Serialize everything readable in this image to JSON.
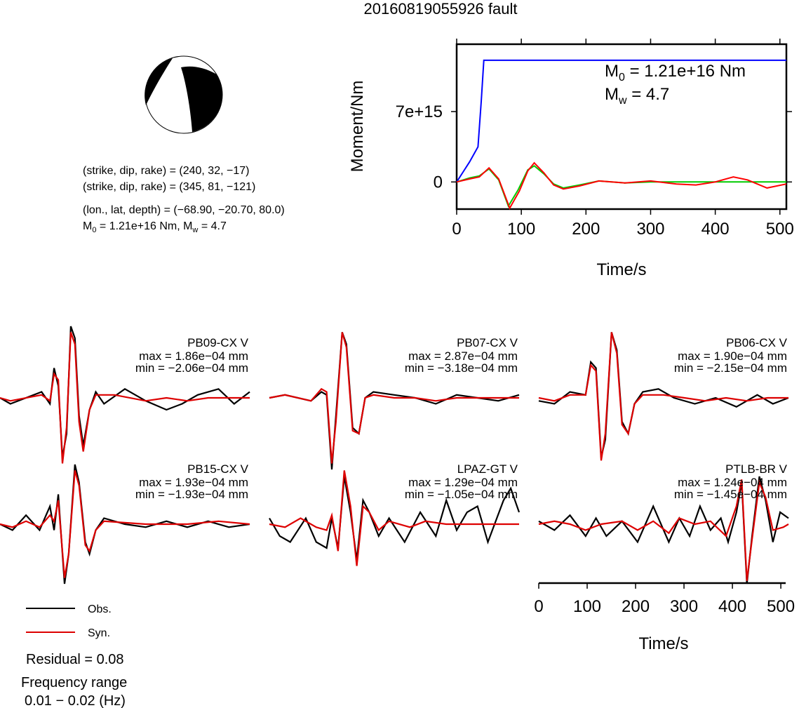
{
  "title": "20160819055926 fault",
  "mechanism": {
    "strike_dip_rake_1": "(strike, dip, rake) = (240, 32, −17)",
    "strike_dip_rake_2": "(strike, dip, rake) = (345, 81, −121)",
    "location": "(lon., lat, depth) = (−68.90, −20.70, 80.0)",
    "m0_label": "M",
    "m0_sub": "0",
    "m0_rest": " = 1.21e+16 Nm, M",
    "mw_sub": "w",
    "mw_rest": " = 4.7"
  },
  "chart_data": [
    {
      "type": "line",
      "ylabel": "Moment/Nm",
      "xlabel": "Time/s",
      "xlim": [
        0,
        510
      ],
      "xticks": [
        "0",
        "100",
        "200",
        "300",
        "400",
        "500"
      ],
      "ylim": [
        -2700000000000000.0,
        1.37e+16
      ],
      "yticks": [
        "0",
        "7e+15"
      ],
      "annotation": {
        "m0_main": "M",
        "m0_sub": "0",
        "m0_rest": " = 1.21e+16 Nm",
        "mw_main": "M",
        "mw_sub": "w",
        "mw_rest": " = 4.7"
      },
      "series": [
        {
          "color": "#0000ff",
          "x": [
            0,
            10,
            20,
            33,
            38,
            42,
            510
          ],
          "y": [
            0,
            1000000000000000.0,
            2000000000000000.0,
            3500000000000000.0,
            8000000000000000.0,
            1.21e+16,
            1.21e+16
          ]
        },
        {
          "color": "#00cc00",
          "x": [
            0,
            20,
            35,
            50,
            65,
            80,
            95,
            110,
            120,
            135,
            150,
            165,
            190,
            220,
            260,
            300,
            340,
            380,
            420,
            460,
            510
          ],
          "y": [
            0,
            400000000000000.0,
            600000000000000.0,
            1300000000000000.0,
            200000000000000.0,
            -2400000000000000.0,
            -800000000000000.0,
            1200000000000000.0,
            1600000000000000.0,
            800000000000000.0,
            -200000000000000.0,
            -600000000000000.0,
            -300000000000000.0,
            100000000000000.0,
            -100000000000000.0,
            0.0,
            0.0,
            0.0,
            0.0,
            0.0,
            0.0
          ]
        },
        {
          "color": "#ff0000",
          "x": [
            0,
            20,
            35,
            50,
            65,
            82,
            97,
            110,
            120,
            135,
            150,
            165,
            190,
            220,
            260,
            300,
            340,
            370,
            400,
            428,
            450,
            480,
            510
          ],
          "y": [
            0,
            300000000000000.0,
            500000000000000.0,
            1400000000000000.0,
            300000000000000.0,
            -2600000000000000.0,
            -900000000000000.0,
            1100000000000000.0,
            1900000000000000.0,
            900000000000000.0,
            -300000000000000.0,
            -700000000000000.0,
            -400000000000000.0,
            100000000000000.0,
            -100000000000000.0,
            100000000000000.0,
            -200000000000000.0,
            -300000000000000.0,
            0.0,
            500000000000000.0,
            200000000000000.0,
            -600000000000000.0,
            -200000000000000.0
          ]
        }
      ]
    }
  ],
  "waveforms": [
    {
      "station": "PB09-CX V",
      "max": "max = 1.86e−04 mm",
      "min": "min = −2.06e−04 mm",
      "obs": [
        [
          0,
          0
        ],
        [
          10,
          -0.1
        ],
        [
          40,
          0.1
        ],
        [
          48,
          -0.1
        ],
        [
          52,
          0.5
        ],
        [
          56,
          0.2
        ],
        [
          60,
          -1
        ],
        [
          64,
          -0.6
        ],
        [
          68,
          1.2
        ],
        [
          72,
          1.0
        ],
        [
          76,
          -0.3
        ],
        [
          80,
          -0.8
        ],
        [
          86,
          -0.2
        ],
        [
          92,
          0.1
        ],
        [
          100,
          -0.1
        ],
        [
          120,
          0.15
        ],
        [
          140,
          -0.05
        ],
        [
          160,
          -0.2
        ],
        [
          175,
          -0.1
        ],
        [
          190,
          0.05
        ],
        [
          210,
          0.15
        ],
        [
          225,
          -0.1
        ],
        [
          240,
          0.1
        ]
      ],
      "syn": [
        [
          0,
          0
        ],
        [
          10,
          -0.05
        ],
        [
          40,
          0.05
        ],
        [
          48,
          -0.05
        ],
        [
          52,
          0.4
        ],
        [
          56,
          0.3
        ],
        [
          60,
          -1.1
        ],
        [
          64,
          -0.5
        ],
        [
          68,
          1.1
        ],
        [
          72,
          0.9
        ],
        [
          76,
          -0.4
        ],
        [
          80,
          -0.9
        ],
        [
          86,
          -0.2
        ],
        [
          92,
          0.05
        ],
        [
          110,
          0.05
        ],
        [
          140,
          -0.05
        ],
        [
          160,
          0.0
        ],
        [
          180,
          -0.05
        ],
        [
          200,
          0.0
        ],
        [
          220,
          0.0
        ],
        [
          240,
          0.0
        ]
      ]
    },
    {
      "station": "PB07-CX V",
      "max": "max = 2.87e−04 mm",
      "min": "min = −3.18e−04 mm",
      "obs": [
        [
          0,
          0
        ],
        [
          15,
          0.05
        ],
        [
          40,
          -0.05
        ],
        [
          50,
          0.1
        ],
        [
          55,
          0.05
        ],
        [
          60,
          -1.2
        ],
        [
          64,
          -0.3
        ],
        [
          70,
          1.1
        ],
        [
          74,
          0.9
        ],
        [
          80,
          -0.5
        ],
        [
          86,
          -0.6
        ],
        [
          92,
          0.0
        ],
        [
          100,
          0.1
        ],
        [
          120,
          0.05
        ],
        [
          140,
          0.0
        ],
        [
          160,
          -0.1
        ],
        [
          180,
          0.05
        ],
        [
          200,
          0.0
        ],
        [
          220,
          -0.05
        ],
        [
          240,
          0.05
        ]
      ],
      "syn": [
        [
          0,
          0
        ],
        [
          15,
          0.05
        ],
        [
          40,
          -0.05
        ],
        [
          50,
          0.15
        ],
        [
          55,
          0.1
        ],
        [
          60,
          -1.1
        ],
        [
          64,
          -0.4
        ],
        [
          70,
          1.1
        ],
        [
          74,
          0.85
        ],
        [
          80,
          -0.55
        ],
        [
          86,
          -0.6
        ],
        [
          92,
          0.0
        ],
        [
          100,
          0.05
        ],
        [
          120,
          0.0
        ],
        [
          140,
          0.0
        ],
        [
          160,
          -0.05
        ],
        [
          180,
          0.0
        ],
        [
          200,
          0.0
        ],
        [
          220,
          0.0
        ],
        [
          240,
          0.0
        ]
      ]
    },
    {
      "station": "PB06-CX V",
      "max": "max = 1.90e−04 mm",
      "min": "min = −2.15e−04 mm",
      "obs": [
        [
          0,
          -0.05
        ],
        [
          15,
          -0.1
        ],
        [
          30,
          0.1
        ],
        [
          45,
          0.05
        ],
        [
          50,
          0.6
        ],
        [
          55,
          0.5
        ],
        [
          60,
          -1.0
        ],
        [
          64,
          -0.7
        ],
        [
          70,
          1.1
        ],
        [
          75,
          0.8
        ],
        [
          80,
          -0.4
        ],
        [
          86,
          -0.6
        ],
        [
          92,
          -0.1
        ],
        [
          100,
          0.1
        ],
        [
          115,
          0.15
        ],
        [
          130,
          0.0
        ],
        [
          150,
          -0.1
        ],
        [
          170,
          0.0
        ],
        [
          190,
          -0.15
        ],
        [
          210,
          0.05
        ],
        [
          225,
          -0.1
        ],
        [
          240,
          0.0
        ]
      ],
      "syn": [
        [
          0,
          0
        ],
        [
          15,
          -0.05
        ],
        [
          30,
          0.05
        ],
        [
          45,
          0.05
        ],
        [
          50,
          0.55
        ],
        [
          55,
          0.45
        ],
        [
          60,
          -1.05
        ],
        [
          64,
          -0.6
        ],
        [
          70,
          1.1
        ],
        [
          75,
          0.75
        ],
        [
          80,
          -0.45
        ],
        [
          86,
          -0.6
        ],
        [
          92,
          -0.1
        ],
        [
          100,
          0.05
        ],
        [
          120,
          0.05
        ],
        [
          140,
          0.0
        ],
        [
          160,
          -0.05
        ],
        [
          180,
          0.0
        ],
        [
          200,
          -0.05
        ],
        [
          220,
          0.0
        ],
        [
          240,
          0.0
        ]
      ]
    },
    {
      "station": "PB15-CX V",
      "max": "max = 1.93e−04 mm",
      "min": "min = −1.93e−04 mm",
      "obs": [
        [
          0,
          0
        ],
        [
          12,
          -0.1
        ],
        [
          25,
          0.15
        ],
        [
          38,
          -0.1
        ],
        [
          48,
          0.3
        ],
        [
          52,
          -0.1
        ],
        [
          56,
          0.5
        ],
        [
          62,
          -1.0
        ],
        [
          66,
          -0.5
        ],
        [
          72,
          1.0
        ],
        [
          76,
          0.7
        ],
        [
          82,
          -0.3
        ],
        [
          86,
          -0.5
        ],
        [
          92,
          -0.1
        ],
        [
          100,
          0.1
        ],
        [
          120,
          0.0
        ],
        [
          140,
          -0.05
        ],
        [
          160,
          0.05
        ],
        [
          180,
          -0.05
        ],
        [
          200,
          0.05
        ],
        [
          220,
          -0.05
        ],
        [
          240,
          0.0
        ]
      ],
      "syn": [
        [
          0,
          0
        ],
        [
          12,
          -0.05
        ],
        [
          25,
          0.05
        ],
        [
          38,
          -0.05
        ],
        [
          48,
          0.15
        ],
        [
          52,
          0.05
        ],
        [
          56,
          0.4
        ],
        [
          62,
          -0.9
        ],
        [
          66,
          -0.5
        ],
        [
          72,
          0.9
        ],
        [
          76,
          0.65
        ],
        [
          82,
          -0.35
        ],
        [
          86,
          -0.45
        ],
        [
          92,
          -0.1
        ],
        [
          100,
          0.05
        ],
        [
          140,
          0.0
        ],
        [
          180,
          0.0
        ],
        [
          210,
          0.05
        ],
        [
          240,
          0.0
        ]
      ]
    },
    {
      "station": "LPAZ-GT V",
      "max": "max = 1.29e−04 mm",
      "min": "min = −1.05e−04 mm",
      "obs": [
        [
          0,
          0.1
        ],
        [
          10,
          -0.2
        ],
        [
          20,
          -0.3
        ],
        [
          35,
          0.1
        ],
        [
          45,
          -0.3
        ],
        [
          55,
          -0.4
        ],
        [
          60,
          0.1
        ],
        [
          66,
          -0.4
        ],
        [
          72,
          0.8
        ],
        [
          78,
          0.2
        ],
        [
          84,
          -0.6
        ],
        [
          90,
          0.4
        ],
        [
          96,
          0.2
        ],
        [
          105,
          -0.2
        ],
        [
          115,
          0.1
        ],
        [
          130,
          -0.3
        ],
        [
          145,
          0.2
        ],
        [
          160,
          -0.2
        ],
        [
          170,
          0.4
        ],
        [
          180,
          -0.1
        ],
        [
          190,
          0.2
        ],
        [
          200,
          0.3
        ],
        [
          210,
          -0.3
        ],
        [
          225,
          0.4
        ],
        [
          232,
          0.6
        ],
        [
          240,
          0.2
        ]
      ],
      "syn": [
        [
          0,
          0.0
        ],
        [
          15,
          -0.05
        ],
        [
          30,
          0.1
        ],
        [
          45,
          -0.05
        ],
        [
          55,
          -0.1
        ],
        [
          60,
          0.15
        ],
        [
          66,
          -0.45
        ],
        [
          72,
          0.9
        ],
        [
          78,
          0.3
        ],
        [
          84,
          -0.7
        ],
        [
          90,
          0.3
        ],
        [
          96,
          0.2
        ],
        [
          105,
          -0.1
        ],
        [
          115,
          0.05
        ],
        [
          135,
          -0.05
        ],
        [
          150,
          0.05
        ],
        [
          170,
          0.0
        ],
        [
          190,
          0.0
        ],
        [
          210,
          0.0
        ],
        [
          240,
          0.0
        ]
      ]
    },
    {
      "station": "PTLB-BR V",
      "max": "max = 1.24e−04 mm",
      "min": "min = −1.45e−04 mm",
      "obs": [
        [
          0,
          0.05
        ],
        [
          15,
          -0.1
        ],
        [
          30,
          0.15
        ],
        [
          45,
          -0.2
        ],
        [
          55,
          0.1
        ],
        [
          65,
          -0.2
        ],
        [
          80,
          0.05
        ],
        [
          95,
          -0.3
        ],
        [
          110,
          0.3
        ],
        [
          125,
          -0.3
        ],
        [
          135,
          0.1
        ],
        [
          145,
          -0.2
        ],
        [
          155,
          0.3
        ],
        [
          165,
          -0.1
        ],
        [
          175,
          0.1
        ],
        [
          182,
          -0.3
        ],
        [
          190,
          0.2
        ],
        [
          195,
          0.7
        ],
        [
          200,
          -1.0
        ],
        [
          205,
          -0.2
        ],
        [
          212,
          0.8
        ],
        [
          218,
          0.4
        ],
        [
          225,
          -0.3
        ],
        [
          232,
          0.2
        ],
        [
          240,
          0.1
        ]
      ],
      "syn": [
        [
          0,
          0.0
        ],
        [
          15,
          0.05
        ],
        [
          30,
          0.0
        ],
        [
          45,
          -0.1
        ],
        [
          60,
          0.0
        ],
        [
          80,
          0.05
        ],
        [
          95,
          -0.1
        ],
        [
          110,
          0.05
        ],
        [
          125,
          -0.15
        ],
        [
          135,
          0.1
        ],
        [
          150,
          0.0
        ],
        [
          165,
          0.05
        ],
        [
          180,
          -0.2
        ],
        [
          190,
          0.3
        ],
        [
          195,
          0.75
        ],
        [
          200,
          -0.95
        ],
        [
          205,
          -0.25
        ],
        [
          212,
          0.7
        ],
        [
          218,
          0.45
        ],
        [
          225,
          -0.1
        ],
        [
          235,
          -0.05
        ],
        [
          240,
          0.0
        ]
      ]
    }
  ],
  "waveform_axis": {
    "xlabel": "Time/s",
    "xlim": [
      0,
      510
    ],
    "xticks": [
      "0",
      "100",
      "200",
      "300",
      "400",
      "500"
    ]
  },
  "legend": [
    {
      "label": "Obs.",
      "color": "#000000"
    },
    {
      "label": "Syn.",
      "color": "#dd0000"
    }
  ],
  "residual": "Residual = 0.08",
  "frequency_label": "Frequency range",
  "frequency_value": "0.01 − 0.02 (Hz)"
}
